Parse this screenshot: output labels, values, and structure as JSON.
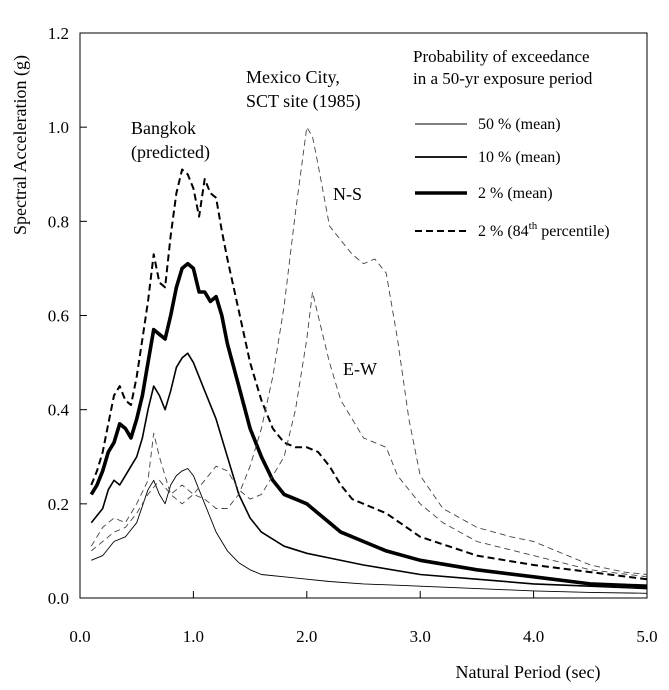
{
  "chart_data": {
    "type": "line",
    "xlabel": "Natural Period (sec)",
    "ylabel": "Spectral Acceleration (g)",
    "xlim": [
      0,
      5
    ],
    "ylim": [
      0,
      1.2
    ],
    "xticks": [
      "0.0",
      "1.0",
      "2.0",
      "3.0",
      "4.0",
      "5.0"
    ],
    "yticks": [
      "0.0",
      "0.2",
      "0.4",
      "0.6",
      "0.8",
      "1.0",
      "1.2"
    ],
    "annotations": {
      "bangkok_line1": "Bangkok",
      "bangkok_line2": "(predicted)",
      "mexico_line1": "Mexico City,",
      "mexico_line2": "SCT site (1985)",
      "ns": "N-S",
      "ew": "E-W"
    },
    "legend": {
      "title_line1": "Probability of exceedance",
      "title_line2": "in a 50-yr exposure period",
      "position": "top-right",
      "entries": [
        {
          "label": "50 % (mean)",
          "style": "thin"
        },
        {
          "label": "10 % (mean)",
          "style": "medium"
        },
        {
          "label": "2 % (mean)",
          "style": "thick"
        },
        {
          "label_prefix": "2 % (84",
          "label_sup": "th",
          "label_suffix": " percentile)",
          "style": "dashed"
        }
      ]
    },
    "series": [
      {
        "name": "50 % (mean)",
        "style": "thin",
        "x": [
          0.1,
          0.2,
          0.3,
          0.4,
          0.5,
          0.6,
          0.65,
          0.7,
          0.75,
          0.8,
          0.85,
          0.9,
          0.95,
          1.0,
          1.1,
          1.2,
          1.3,
          1.4,
          1.5,
          1.6,
          1.8,
          2.0,
          2.2,
          2.5,
          3.0,
          3.5,
          4.0,
          4.5,
          5.0
        ],
        "y": [
          0.08,
          0.09,
          0.12,
          0.13,
          0.16,
          0.23,
          0.25,
          0.22,
          0.2,
          0.24,
          0.26,
          0.27,
          0.275,
          0.26,
          0.2,
          0.14,
          0.1,
          0.075,
          0.06,
          0.05,
          0.045,
          0.04,
          0.035,
          0.03,
          0.025,
          0.02,
          0.015,
          0.012,
          0.01
        ]
      },
      {
        "name": "10 % (mean)",
        "style": "medium",
        "x": [
          0.1,
          0.2,
          0.25,
          0.3,
          0.35,
          0.4,
          0.45,
          0.5,
          0.55,
          0.6,
          0.65,
          0.7,
          0.75,
          0.8,
          0.85,
          0.9,
          0.95,
          1.0,
          1.1,
          1.2,
          1.3,
          1.4,
          1.5,
          1.6,
          1.8,
          2.0,
          2.2,
          2.5,
          3.0,
          3.5,
          4.0,
          4.5,
          5.0
        ],
        "y": [
          0.16,
          0.19,
          0.23,
          0.25,
          0.24,
          0.26,
          0.28,
          0.3,
          0.34,
          0.4,
          0.45,
          0.43,
          0.4,
          0.44,
          0.49,
          0.51,
          0.52,
          0.5,
          0.44,
          0.38,
          0.3,
          0.22,
          0.17,
          0.14,
          0.11,
          0.095,
          0.085,
          0.07,
          0.05,
          0.04,
          0.03,
          0.025,
          0.02
        ]
      },
      {
        "name": "2 % (mean)",
        "style": "thick",
        "x": [
          0.1,
          0.15,
          0.2,
          0.25,
          0.3,
          0.35,
          0.4,
          0.45,
          0.5,
          0.55,
          0.6,
          0.65,
          0.7,
          0.75,
          0.8,
          0.85,
          0.9,
          0.95,
          1.0,
          1.05,
          1.1,
          1.15,
          1.2,
          1.25,
          1.3,
          1.4,
          1.5,
          1.6,
          1.7,
          1.8,
          1.9,
          2.0,
          2.1,
          2.2,
          2.3,
          2.5,
          2.7,
          3.0,
          3.5,
          4.0,
          4.5,
          5.0
        ],
        "y": [
          0.22,
          0.24,
          0.27,
          0.31,
          0.33,
          0.37,
          0.36,
          0.34,
          0.38,
          0.43,
          0.5,
          0.57,
          0.56,
          0.55,
          0.6,
          0.66,
          0.7,
          0.71,
          0.7,
          0.65,
          0.65,
          0.63,
          0.64,
          0.6,
          0.54,
          0.45,
          0.36,
          0.3,
          0.25,
          0.22,
          0.21,
          0.2,
          0.18,
          0.16,
          0.14,
          0.12,
          0.1,
          0.08,
          0.06,
          0.045,
          0.03,
          0.025
        ]
      },
      {
        "name": "2 % (84th percentile)",
        "style": "dashed",
        "x": [
          0.1,
          0.15,
          0.2,
          0.25,
          0.3,
          0.35,
          0.4,
          0.45,
          0.5,
          0.55,
          0.6,
          0.65,
          0.7,
          0.75,
          0.8,
          0.85,
          0.9,
          0.95,
          1.0,
          1.05,
          1.1,
          1.15,
          1.2,
          1.25,
          1.3,
          1.4,
          1.5,
          1.6,
          1.7,
          1.8,
          1.9,
          2.0,
          2.1,
          2.2,
          2.3,
          2.4,
          2.5,
          2.7,
          3.0,
          3.5,
          4.0,
          4.5,
          5.0
        ],
        "y": [
          0.24,
          0.27,
          0.31,
          0.37,
          0.43,
          0.45,
          0.42,
          0.41,
          0.47,
          0.55,
          0.63,
          0.73,
          0.67,
          0.66,
          0.77,
          0.86,
          0.91,
          0.9,
          0.87,
          0.81,
          0.89,
          0.86,
          0.85,
          0.78,
          0.72,
          0.61,
          0.5,
          0.42,
          0.36,
          0.33,
          0.32,
          0.32,
          0.31,
          0.28,
          0.24,
          0.21,
          0.2,
          0.18,
          0.13,
          0.09,
          0.07,
          0.055,
          0.04
        ]
      },
      {
        "name": "Mexico City N-S",
        "style": "light-dashed",
        "x": [
          0.1,
          0.2,
          0.3,
          0.4,
          0.5,
          0.6,
          0.7,
          0.8,
          0.9,
          1.0,
          1.1,
          1.2,
          1.3,
          1.4,
          1.5,
          1.6,
          1.7,
          1.8,
          1.9,
          2.0,
          2.05,
          2.1,
          2.2,
          2.3,
          2.4,
          2.5,
          2.6,
          2.7,
          2.8,
          2.9,
          3.0,
          3.2,
          3.5,
          3.8,
          4.0,
          4.2,
          4.5,
          4.8,
          5.0
        ],
        "y": [
          0.1,
          0.12,
          0.14,
          0.15,
          0.18,
          0.22,
          0.25,
          0.22,
          0.24,
          0.22,
          0.21,
          0.19,
          0.19,
          0.22,
          0.28,
          0.36,
          0.47,
          0.62,
          0.82,
          1.0,
          0.98,
          0.92,
          0.79,
          0.76,
          0.73,
          0.71,
          0.72,
          0.69,
          0.55,
          0.38,
          0.26,
          0.19,
          0.15,
          0.13,
          0.12,
          0.1,
          0.07,
          0.055,
          0.05
        ]
      },
      {
        "name": "Mexico City E-W",
        "style": "light-dashed",
        "x": [
          0.1,
          0.2,
          0.3,
          0.4,
          0.5,
          0.6,
          0.65,
          0.7,
          0.8,
          0.9,
          1.0,
          1.1,
          1.2,
          1.3,
          1.4,
          1.5,
          1.6,
          1.7,
          1.8,
          1.9,
          2.0,
          2.05,
          2.1,
          2.2,
          2.3,
          2.4,
          2.5,
          2.6,
          2.7,
          2.8,
          3.0,
          3.2,
          3.5,
          4.0,
          4.5,
          5.0
        ],
        "y": [
          0.11,
          0.15,
          0.17,
          0.16,
          0.2,
          0.25,
          0.35,
          0.3,
          0.22,
          0.2,
          0.22,
          0.25,
          0.28,
          0.27,
          0.23,
          0.21,
          0.22,
          0.26,
          0.3,
          0.4,
          0.55,
          0.65,
          0.6,
          0.5,
          0.42,
          0.38,
          0.34,
          0.33,
          0.32,
          0.26,
          0.2,
          0.16,
          0.12,
          0.09,
          0.06,
          0.045
        ]
      }
    ]
  }
}
